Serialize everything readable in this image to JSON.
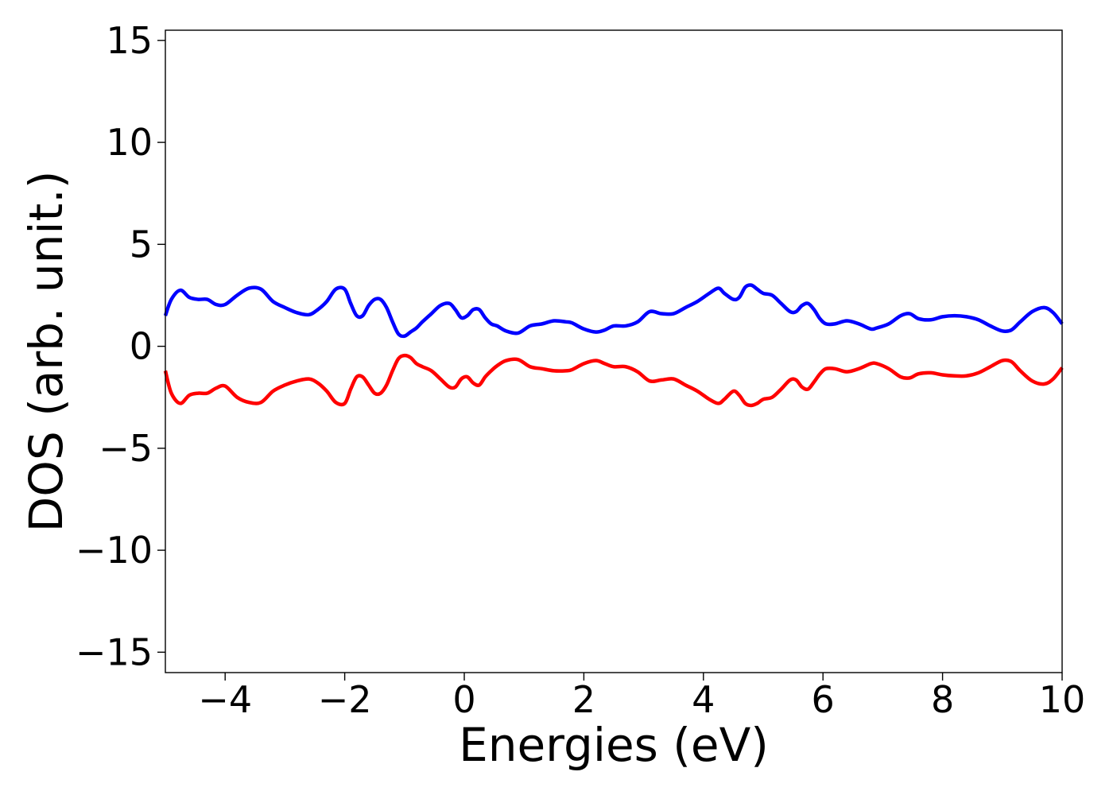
{
  "chart_data": {
    "type": "line",
    "title": "",
    "xlabel": "Energies (eV)",
    "ylabel": "DOS (arb. unit.)",
    "xlim": [
      -5,
      10
    ],
    "ylim": [
      -16,
      15.5
    ],
    "xticks": [
      -4,
      -2,
      0,
      2,
      4,
      6,
      8,
      10
    ],
    "yticks": [
      -15,
      -10,
      -5,
      0,
      5,
      10,
      15
    ],
    "xtick_labels": [
      "−4",
      "−2",
      "0",
      "2",
      "4",
      "6",
      "8",
      "10"
    ],
    "ytick_labels": [
      "−15",
      "−10",
      "−5",
      "0",
      "5",
      "10",
      "15"
    ],
    "grid": false,
    "legend": "none",
    "series": [
      {
        "color": "#0000ff",
        "x": [
          -5.0,
          -4.9,
          -4.75,
          -4.6,
          -4.45,
          -4.3,
          -4.15,
          -4.0,
          -3.8,
          -3.6,
          -3.4,
          -3.2,
          -3.0,
          -2.8,
          -2.6,
          -2.45,
          -2.3,
          -2.15,
          -2.0,
          -1.9,
          -1.8,
          -1.7,
          -1.6,
          -1.5,
          -1.4,
          -1.3,
          -1.2,
          -1.1,
          -1.0,
          -0.9,
          -0.8,
          -0.7,
          -0.55,
          -0.4,
          -0.25,
          -0.15,
          -0.05,
          0.05,
          0.15,
          0.25,
          0.35,
          0.45,
          0.55,
          0.7,
          0.9,
          1.1,
          1.3,
          1.5,
          1.7,
          1.8,
          2.0,
          2.2,
          2.35,
          2.5,
          2.7,
          2.9,
          3.1,
          3.3,
          3.5,
          3.7,
          3.9,
          4.1,
          4.25,
          4.35,
          4.5,
          4.6,
          4.7,
          4.8,
          4.9,
          5.0,
          5.15,
          5.3,
          5.45,
          5.55,
          5.65,
          5.75,
          5.85,
          5.95,
          6.05,
          6.2,
          6.4,
          6.6,
          6.8,
          6.9,
          7.1,
          7.3,
          7.45,
          7.6,
          7.8,
          8.0,
          8.2,
          8.4,
          8.6,
          8.8,
          9.0,
          9.15,
          9.3,
          9.5,
          9.7,
          9.85,
          10.0
        ],
        "y": [
          1.5,
          2.3,
          2.75,
          2.4,
          2.3,
          2.3,
          2.05,
          2.05,
          2.5,
          2.85,
          2.8,
          2.2,
          1.9,
          1.65,
          1.55,
          1.8,
          2.2,
          2.8,
          2.8,
          2.1,
          1.5,
          1.5,
          2.0,
          2.3,
          2.3,
          1.9,
          1.2,
          0.6,
          0.5,
          0.7,
          0.9,
          1.2,
          1.6,
          2.0,
          2.1,
          1.8,
          1.4,
          1.5,
          1.8,
          1.8,
          1.4,
          1.1,
          1.0,
          0.75,
          0.65,
          1.0,
          1.1,
          1.25,
          1.2,
          1.15,
          0.85,
          0.7,
          0.8,
          1.0,
          1.0,
          1.2,
          1.7,
          1.6,
          1.6,
          1.9,
          2.2,
          2.6,
          2.85,
          2.6,
          2.3,
          2.4,
          2.9,
          3.0,
          2.8,
          2.6,
          2.5,
          2.1,
          1.7,
          1.7,
          2.0,
          2.1,
          1.8,
          1.35,
          1.1,
          1.1,
          1.25,
          1.1,
          0.85,
          0.9,
          1.1,
          1.5,
          1.6,
          1.35,
          1.3,
          1.45,
          1.5,
          1.45,
          1.3,
          1.0,
          0.75,
          0.8,
          1.2,
          1.7,
          1.9,
          1.65,
          1.1
        ]
      },
      {
        "color": "#ff0000",
        "x": [
          -5.0,
          -4.9,
          -4.75,
          -4.6,
          -4.45,
          -4.3,
          -4.15,
          -4.0,
          -3.8,
          -3.6,
          -3.4,
          -3.2,
          -3.0,
          -2.8,
          -2.6,
          -2.45,
          -2.3,
          -2.15,
          -2.0,
          -1.9,
          -1.8,
          -1.7,
          -1.6,
          -1.5,
          -1.4,
          -1.3,
          -1.2,
          -1.1,
          -1.0,
          -0.9,
          -0.8,
          -0.7,
          -0.55,
          -0.4,
          -0.25,
          -0.15,
          -0.05,
          0.05,
          0.15,
          0.25,
          0.35,
          0.45,
          0.55,
          0.7,
          0.9,
          1.1,
          1.3,
          1.5,
          1.7,
          1.8,
          2.0,
          2.2,
          2.35,
          2.5,
          2.7,
          2.9,
          3.1,
          3.3,
          3.5,
          3.7,
          3.9,
          4.1,
          4.25,
          4.35,
          4.5,
          4.6,
          4.7,
          4.8,
          4.9,
          5.0,
          5.15,
          5.3,
          5.45,
          5.55,
          5.65,
          5.75,
          5.85,
          5.95,
          6.05,
          6.2,
          6.4,
          6.6,
          6.8,
          6.9,
          7.1,
          7.3,
          7.45,
          7.6,
          7.8,
          8.0,
          8.2,
          8.4,
          8.6,
          8.8,
          9.0,
          9.15,
          9.3,
          9.5,
          9.7,
          9.85,
          10.0
        ],
        "y": [
          -1.2,
          -2.3,
          -2.8,
          -2.4,
          -2.3,
          -2.3,
          -2.05,
          -1.95,
          -2.5,
          -2.75,
          -2.75,
          -2.2,
          -1.9,
          -1.7,
          -1.6,
          -1.8,
          -2.2,
          -2.75,
          -2.8,
          -2.1,
          -1.5,
          -1.5,
          -1.9,
          -2.3,
          -2.3,
          -1.9,
          -1.2,
          -0.6,
          -0.45,
          -0.55,
          -0.85,
          -1.0,
          -1.2,
          -1.6,
          -2.0,
          -2.0,
          -1.6,
          -1.5,
          -1.8,
          -1.9,
          -1.5,
          -1.2,
          -0.95,
          -0.7,
          -0.65,
          -1.0,
          -1.1,
          -1.2,
          -1.2,
          -1.15,
          -0.85,
          -0.7,
          -0.85,
          -1.0,
          -1.0,
          -1.25,
          -1.7,
          -1.65,
          -1.6,
          -1.9,
          -2.2,
          -2.6,
          -2.8,
          -2.6,
          -2.2,
          -2.4,
          -2.8,
          -2.9,
          -2.8,
          -2.6,
          -2.5,
          -2.1,
          -1.65,
          -1.65,
          -2.0,
          -2.1,
          -1.75,
          -1.35,
          -1.1,
          -1.1,
          -1.25,
          -1.1,
          -0.85,
          -0.85,
          -1.1,
          -1.5,
          -1.55,
          -1.35,
          -1.3,
          -1.4,
          -1.45,
          -1.45,
          -1.3,
          -1.0,
          -0.7,
          -0.75,
          -1.2,
          -1.7,
          -1.85,
          -1.6,
          -1.05
        ]
      }
    ]
  }
}
